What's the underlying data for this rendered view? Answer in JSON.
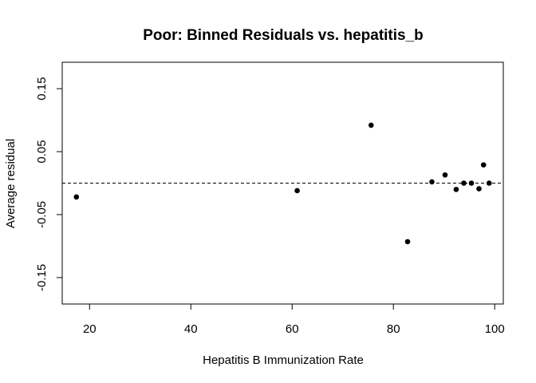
{
  "chart_data": {
    "type": "scatter",
    "title": "Poor: Binned Residuals vs. hepatitis_b",
    "xlabel": "Hepatitis B Immunization Rate",
    "ylabel": "Average residual",
    "xlim": [
      14.6,
      101.7
    ],
    "ylim": [
      -0.192,
      0.192
    ],
    "x_ticks": [
      20,
      40,
      60,
      80,
      100
    ],
    "y_ticks": [
      -0.15,
      -0.05,
      0.05,
      0.15
    ],
    "x_tick_labels": [
      "20",
      "40",
      "60",
      "80",
      "100"
    ],
    "y_tick_labels": [
      "-0.15",
      "-0.05",
      "0.05",
      "0.15"
    ],
    "reference_line": 0,
    "grid": false,
    "points": [
      {
        "x": 17.4,
        "y": -0.022
      },
      {
        "x": 61.0,
        "y": -0.012
      },
      {
        "x": 75.6,
        "y": 0.092
      },
      {
        "x": 82.8,
        "y": -0.093
      },
      {
        "x": 87.6,
        "y": 0.002
      },
      {
        "x": 90.2,
        "y": 0.013
      },
      {
        "x": 92.4,
        "y": -0.01
      },
      {
        "x": 93.9,
        "y": 0.0
      },
      {
        "x": 95.4,
        "y": 0.0
      },
      {
        "x": 96.9,
        "y": -0.009
      },
      {
        "x": 97.8,
        "y": 0.029
      },
      {
        "x": 98.9,
        "y": 0.0
      }
    ],
    "colors": {
      "points": "#000000",
      "axes": "#000000",
      "reference_line": "#000000"
    }
  }
}
